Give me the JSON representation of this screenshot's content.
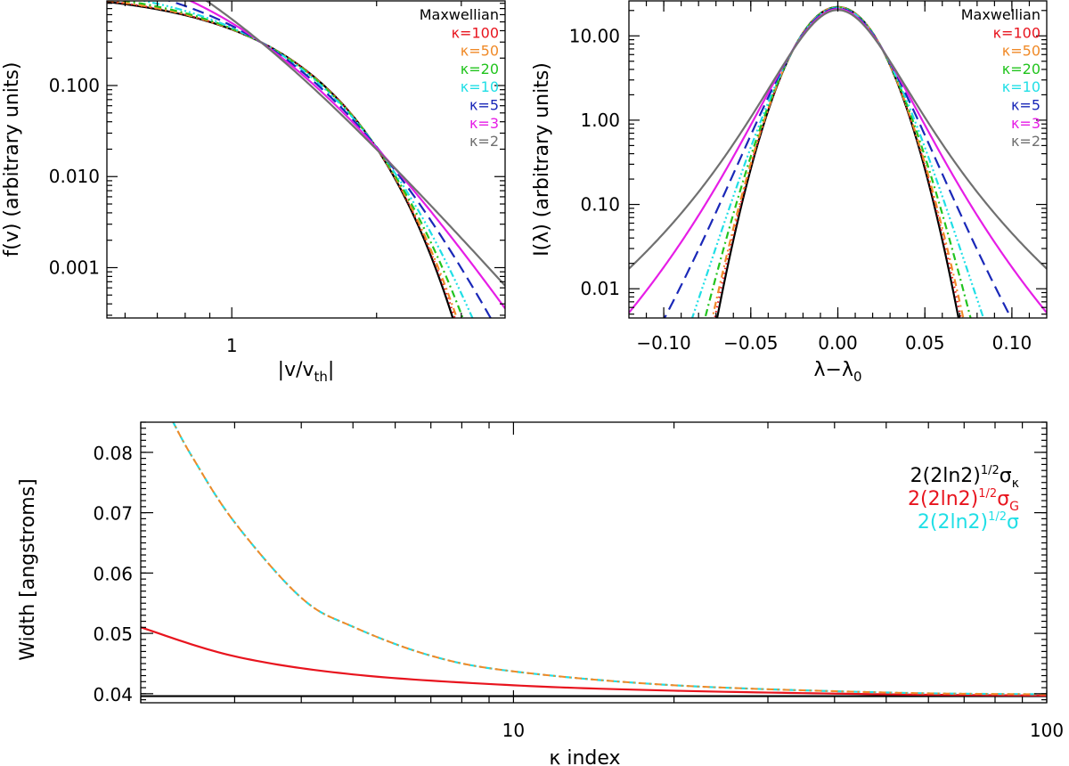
{
  "figure": {
    "colors": {
      "maxwellian": "#000000",
      "k100": "#e8141e",
      "k50": "#f08a28",
      "k20": "#22c41e",
      "k10": "#20dfe6",
      "k5": "#1a28b8",
      "k3": "#e61ee6",
      "k2": "#707070"
    }
  },
  "chart_data": [
    {
      "id": "top-left",
      "type": "line",
      "title": "",
      "xlabel": "|v/v",
      "xlabel_sub": "th",
      "xlabel_end": "|",
      "ylabel": "f(v) (arbitrary units)",
      "xscale": "log",
      "yscale": "log",
      "xlim": [
        0.55,
        3.7
      ],
      "ylim": [
        0.00028,
        0.85
      ],
      "xticks": [
        {
          "value": 1,
          "label": "1"
        }
      ],
      "yticks": [
        {
          "value": 0.001,
          "label": "0.001"
        },
        {
          "value": 0.01,
          "label": "0.010"
        },
        {
          "value": 0.1,
          "label": "0.100"
        }
      ],
      "legend_position": "top-right",
      "legend": [
        {
          "label": "Maxwellian",
          "color": "#000000"
        },
        {
          "label": "κ=100",
          "color": "#e8141e"
        },
        {
          "label": "κ=50",
          "color": "#f08a28"
        },
        {
          "label": "κ=20",
          "color": "#22c41e"
        },
        {
          "label": "κ=10",
          "color": "#20dfe6"
        },
        {
          "label": "κ=5",
          "color": "#1a28b8"
        },
        {
          "label": "κ=3",
          "color": "#e61ee6"
        },
        {
          "label": "κ=2",
          "color": "#707070"
        }
      ],
      "series": [
        {
          "name": "Maxwellian",
          "kappa": null,
          "color": "#000000",
          "dash": "solid"
        },
        {
          "name": "κ=100",
          "kappa": 100,
          "color": "#e8141e",
          "dash": "dot"
        },
        {
          "name": "κ=50",
          "kappa": 50,
          "color": "#f08a28",
          "dash": "dashdot"
        },
        {
          "name": "κ=20",
          "kappa": 20,
          "color": "#22c41e",
          "dash": "dashdot"
        },
        {
          "name": "κ=10",
          "kappa": 10,
          "color": "#20dfe6",
          "dash": "dashdotdotdot"
        },
        {
          "name": "κ=5",
          "kappa": 5,
          "color": "#1a28b8",
          "dash": "dash"
        },
        {
          "name": "κ=3",
          "kappa": 3,
          "color": "#e61ee6",
          "dash": "solid"
        },
        {
          "name": "κ=2",
          "kappa": 2,
          "color": "#707070",
          "dash": "solid"
        }
      ]
    },
    {
      "id": "top-right",
      "type": "line",
      "title": "",
      "xlabel": "λ−λ",
      "xlabel_sub": "0",
      "ylabel": "I(λ) (arbitrary units)",
      "xscale": "linear",
      "yscale": "log",
      "xlim": [
        -0.12,
        0.12
      ],
      "ylim": [
        0.0045,
        26
      ],
      "fwhm_angstrom": 0.0396,
      "xticks": [
        {
          "value": -0.1,
          "label": "−0.10"
        },
        {
          "value": -0.05,
          "label": "−0.05"
        },
        {
          "value": 0,
          "label": "0.00"
        },
        {
          "value": 0.05,
          "label": "0.05"
        },
        {
          "value": 0.1,
          "label": "0.10"
        }
      ],
      "yticks": [
        {
          "value": 0.01,
          "label": "0.01"
        },
        {
          "value": 0.1,
          "label": "0.10"
        },
        {
          "value": 1,
          "label": "1.00"
        },
        {
          "value": 10,
          "label": "10.00"
        }
      ],
      "legend_position": "top-right",
      "legend": [
        {
          "label": "Maxwellian",
          "color": "#000000"
        },
        {
          "label": "κ=100",
          "color": "#e8141e"
        },
        {
          "label": "κ=50",
          "color": "#f08a28"
        },
        {
          "label": "κ=20",
          "color": "#22c41e"
        },
        {
          "label": "κ=10",
          "color": "#20dfe6"
        },
        {
          "label": "κ=5",
          "color": "#1a28b8"
        },
        {
          "label": "κ=3",
          "color": "#e61ee6"
        },
        {
          "label": "κ=2",
          "color": "#707070"
        }
      ],
      "series": [
        {
          "name": "Maxwellian",
          "kappa": null,
          "color": "#000000",
          "dash": "solid"
        },
        {
          "name": "κ=100",
          "kappa": 100,
          "color": "#e8141e",
          "dash": "dot"
        },
        {
          "name": "κ=50",
          "kappa": 50,
          "color": "#f08a28",
          "dash": "dashdot"
        },
        {
          "name": "κ=20",
          "kappa": 20,
          "color": "#22c41e",
          "dash": "dashdot"
        },
        {
          "name": "κ=10",
          "kappa": 10,
          "color": "#20dfe6",
          "dash": "dashdotdotdot"
        },
        {
          "name": "κ=5",
          "kappa": 5,
          "color": "#1a28b8",
          "dash": "dash"
        },
        {
          "name": "κ=3",
          "kappa": 3,
          "color": "#e61ee6",
          "dash": "solid"
        },
        {
          "name": "κ=2",
          "kappa": 2,
          "color": "#707070",
          "dash": "solid"
        }
      ]
    },
    {
      "id": "bottom",
      "type": "line",
      "title": "",
      "xlabel": "κ index",
      "ylabel": "Width [angstroms]",
      "xscale": "log",
      "yscale": "linear",
      "xlim": [
        2,
        100
      ],
      "ylim": [
        0.0385,
        0.085
      ],
      "xticks": [
        {
          "value": 10,
          "label": "10"
        },
        {
          "value": 100,
          "label": "100"
        }
      ],
      "yticks": [
        {
          "value": 0.04,
          "label": "0.04"
        },
        {
          "value": 0.05,
          "label": "0.05"
        },
        {
          "value": 0.06,
          "label": "0.06"
        },
        {
          "value": 0.07,
          "label": "0.07"
        },
        {
          "value": 0.08,
          "label": "0.08"
        }
      ],
      "legend_position": "top-right",
      "legend": [
        {
          "main": "2(2ln2)",
          "sup": "1/2",
          "sym": "σ",
          "sub": "κ",
          "color": "#000000"
        },
        {
          "main": "2(2ln2)",
          "sup": "1/2",
          "sym": "σ",
          "sub": "G",
          "color": "#e8141e"
        },
        {
          "main": "2(2ln2)",
          "sup": "1/2",
          "sym": "σ",
          "sub": "",
          "color": "#20dfe6"
        }
      ],
      "series": [
        {
          "name": "2(2ln2)^1/2 σκ",
          "color": "#000000",
          "dash": "solid",
          "x": [
            2,
            100
          ],
          "y": [
            0.0396,
            0.0396
          ]
        },
        {
          "name": "2(2ln2)^1/2 σG",
          "color": "#e8141e",
          "dash": "solid",
          "x": [
            2,
            3,
            5,
            10,
            20,
            50,
            100
          ],
          "y": [
            0.051,
            0.0462,
            0.0432,
            0.0414,
            0.0405,
            0.0399,
            0.0397
          ]
        },
        {
          "name": "2(2ln2)^1/2 σ",
          "color": "#20dfe6",
          "dash": "dashdot",
          "x": [
            2.3,
            2.5,
            3,
            4,
            5,
            7,
            10,
            20,
            50,
            100
          ],
          "y": [
            0.085,
            0.0792,
            0.0684,
            0.0559,
            0.0511,
            0.0463,
            0.0437,
            0.0414,
            0.0402,
            0.0399
          ]
        }
      ]
    }
  ]
}
